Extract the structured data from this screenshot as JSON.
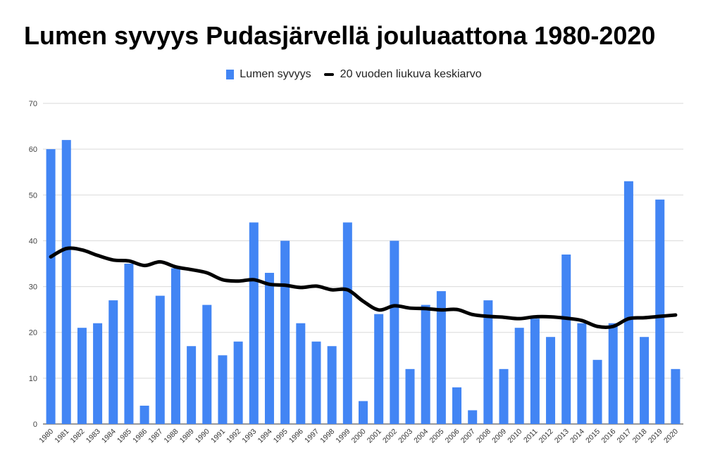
{
  "chart_data": {
    "type": "bar",
    "title": "Lumen syvyys Pudasjärvellä jouluaattona 1980-2020",
    "xlabel": "",
    "ylabel": "",
    "ylim": [
      0,
      70
    ],
    "yticks": [
      0,
      10,
      20,
      30,
      40,
      50,
      60,
      70
    ],
    "grid": true,
    "legend_position": "top-center",
    "categories": [
      "1980",
      "1981",
      "1982",
      "1983",
      "1984",
      "1985",
      "1986",
      "1987",
      "1988",
      "1989",
      "1990",
      "1991",
      "1992",
      "1993",
      "1994",
      "1995",
      "1996",
      "1997",
      "1998",
      "1999",
      "2000",
      "2001",
      "2002",
      "2003",
      "2004",
      "2005",
      "2006",
      "2007",
      "2008",
      "2009",
      "2010",
      "2011",
      "2012",
      "2013",
      "2014",
      "2015",
      "2016",
      "2017",
      "2018",
      "2019",
      "2020"
    ],
    "series": [
      {
        "name": "Lumen syvyys",
        "type": "bar",
        "color": "#4285f4",
        "values": [
          60,
          62,
          21,
          22,
          27,
          35,
          4,
          28,
          34,
          17,
          26,
          15,
          18,
          44,
          33,
          40,
          22,
          18,
          17,
          44,
          5,
          24,
          40,
          12,
          26,
          29,
          8,
          3,
          27,
          12,
          21,
          23,
          19,
          37,
          22,
          14,
          22,
          53,
          19,
          49,
          12
        ]
      },
      {
        "name": "20 vuoden liukuva keskiarvo",
        "type": "line",
        "color": "#000000",
        "values": [
          36.5,
          38.3,
          38.0,
          36.8,
          35.8,
          35.6,
          34.6,
          35.4,
          34.3,
          33.7,
          33.0,
          31.5,
          31.2,
          31.5,
          30.5,
          30.3,
          29.8,
          30.1,
          29.3,
          29.3,
          26.8,
          24.9,
          25.8,
          25.3,
          25.2,
          24.9,
          25.0,
          23.9,
          23.5,
          23.3,
          23.0,
          23.4,
          23.4,
          23.1,
          22.6,
          21.3,
          21.3,
          23.0,
          23.2,
          23.5,
          23.8
        ]
      }
    ]
  }
}
